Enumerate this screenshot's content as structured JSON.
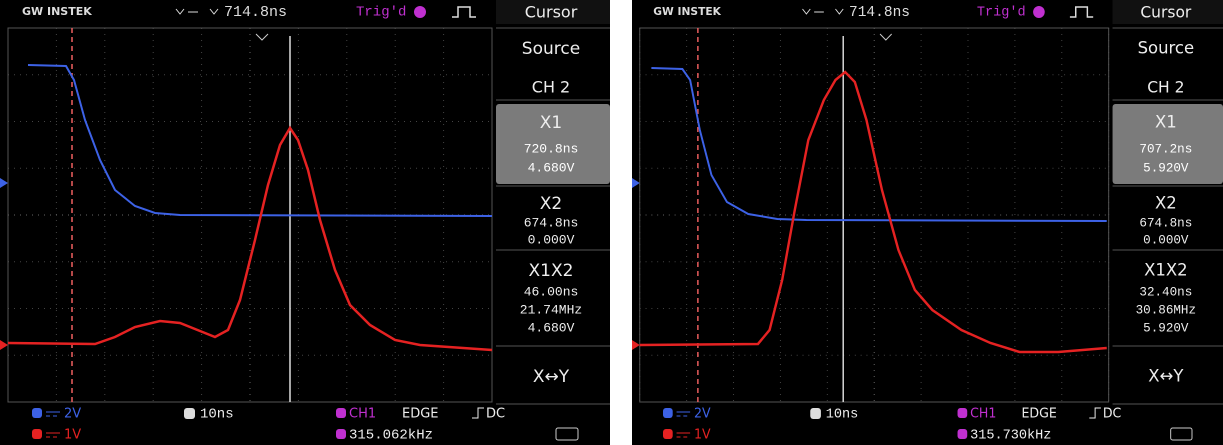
{
  "screens": [
    {
      "brand": "GW INSTEK",
      "timebase_position": "714.8ns",
      "trigger_status": "Trig'd",
      "menu": {
        "title": "Cursor",
        "source_label": "Source",
        "source": "CH 2",
        "x1": {
          "label": "X1",
          "time": "720.8ns",
          "voltage": "4.680V"
        },
        "x2": {
          "label": "X2",
          "time": "674.8ns",
          "voltage": "0.000V"
        },
        "delta": {
          "label": "X1X2",
          "time": "46.00ns",
          "frequency": "21.74MHz",
          "voltage": "4.680V"
        },
        "swap": "X↔Y"
      },
      "status": {
        "ch1_scale": "2V",
        "ch2_scale": "1V",
        "timebase": "10ns",
        "trigger_source": "CH1",
        "trigger_type": "EDGE",
        "coupling": "DC",
        "frequency": "315.062kHz"
      }
    },
    {
      "brand": "GW INSTEK",
      "timebase_position": "714.8ns",
      "trigger_status": "Trig'd",
      "menu": {
        "title": "Cursor",
        "source_label": "Source",
        "source": "CH 2",
        "x1": {
          "label": "X1",
          "time": "707.2ns",
          "voltage": "5.920V"
        },
        "x2": {
          "label": "X2",
          "time": "674.8ns",
          "voltage": "0.000V"
        },
        "delta": {
          "label": "X1X2",
          "time": "32.40ns",
          "frequency": "30.86MHz",
          "voltage": "5.920V"
        },
        "swap": "X↔Y"
      },
      "status": {
        "ch1_scale": "2V",
        "ch2_scale": "1V",
        "timebase": "10ns",
        "trigger_source": "CH1",
        "trigger_type": "EDGE",
        "coupling": "DC",
        "frequency": "315.730kHz"
      }
    }
  ]
}
